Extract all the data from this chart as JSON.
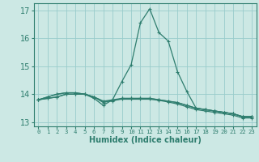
{
  "title": "",
  "xlabel": "Humidex (Indice chaleur)",
  "ylabel": "",
  "bg_color": "#cce8e4",
  "grid_color": "#99cccc",
  "line_color": "#2e7d6e",
  "spine_color": "#2e7d6e",
  "tick_color": "#2e7d6e",
  "xlim": [
    -0.5,
    23.5
  ],
  "ylim": [
    12.85,
    17.25
  ],
  "yticks": [
    13,
    14,
    15,
    16,
    17
  ],
  "xticks": [
    0,
    1,
    2,
    3,
    4,
    5,
    6,
    7,
    8,
    9,
    10,
    11,
    12,
    13,
    14,
    15,
    16,
    17,
    18,
    19,
    20,
    21,
    22,
    23
  ],
  "series": [
    [
      13.8,
      13.9,
      14.0,
      14.05,
      14.05,
      14.0,
      13.85,
      13.6,
      13.8,
      14.45,
      15.05,
      16.55,
      17.05,
      16.2,
      15.9,
      14.8,
      14.1,
      13.5,
      13.45,
      13.4,
      13.35,
      13.3,
      13.2,
      13.2
    ],
    [
      13.8,
      13.9,
      14.0,
      14.05,
      14.05,
      14.0,
      13.9,
      13.75,
      13.75,
      13.85,
      13.85,
      13.85,
      13.85,
      13.8,
      13.75,
      13.7,
      13.6,
      13.5,
      13.45,
      13.4,
      13.35,
      13.3,
      13.2,
      13.2
    ],
    [
      13.8,
      13.85,
      13.9,
      14.0,
      14.0,
      14.0,
      13.9,
      13.75,
      13.8,
      13.85,
      13.85,
      13.85,
      13.85,
      13.8,
      13.75,
      13.7,
      13.6,
      13.5,
      13.45,
      13.4,
      13.35,
      13.3,
      13.2,
      13.2
    ],
    [
      13.8,
      13.85,
      13.9,
      14.0,
      14.0,
      14.0,
      13.9,
      13.7,
      13.78,
      13.82,
      13.82,
      13.82,
      13.82,
      13.78,
      13.72,
      13.65,
      13.55,
      13.45,
      13.4,
      13.35,
      13.3,
      13.25,
      13.15,
      13.15
    ]
  ],
  "xlabel_fontsize": 7,
  "ytick_fontsize": 7,
  "xtick_fontsize": 5.2,
  "marker_size": 3,
  "line_width": 0.9
}
